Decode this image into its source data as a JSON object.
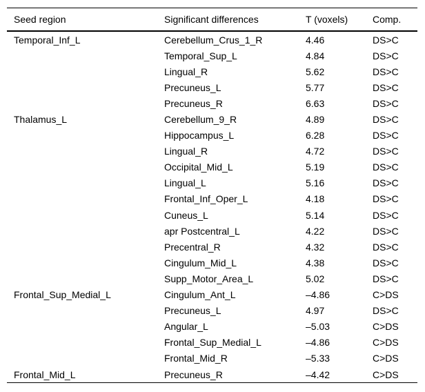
{
  "table": {
    "columns": [
      "Seed region",
      "Significant differences",
      "T (voxels)",
      "Comp."
    ],
    "rows": [
      {
        "seed": "Temporal_Inf_L",
        "difference": "Cerebellum_Crus_1_R",
        "t": "4.46",
        "comp": "DS>C"
      },
      {
        "seed": "",
        "difference": "Temporal_Sup_L",
        "t": "4.84",
        "comp": "DS>C"
      },
      {
        "seed": "",
        "difference": "Lingual_R",
        "t": "5.62",
        "comp": "DS>C"
      },
      {
        "seed": "",
        "difference": "Precuneus_L",
        "t": "5.77",
        "comp": "DS>C"
      },
      {
        "seed": "",
        "difference": "Precuneus_R",
        "t": "6.63",
        "comp": "DS>C"
      },
      {
        "seed": "Thalamus_L",
        "difference": "Cerebellum_9_R",
        "t": "4.89",
        "comp": "DS>C"
      },
      {
        "seed": "",
        "difference": "Hippocampus_L",
        "t": "6.28",
        "comp": "DS>C"
      },
      {
        "seed": "",
        "difference": "Lingual_R",
        "t": "4.72",
        "comp": "DS>C"
      },
      {
        "seed": "",
        "difference": "Occipital_Mid_L",
        "t": "5.19",
        "comp": "DS>C"
      },
      {
        "seed": "",
        "difference": "Lingual_L",
        "t": "5.16",
        "comp": "DS>C"
      },
      {
        "seed": "",
        "difference": "Frontal_Inf_Oper_L",
        "t": "4.18",
        "comp": "DS>C"
      },
      {
        "seed": "",
        "difference": "Cuneus_L",
        "t": "5.14",
        "comp": "DS>C"
      },
      {
        "seed": "",
        "difference": "apr Postcentral_L",
        "t": "4.22",
        "comp": "DS>C"
      },
      {
        "seed": "",
        "difference": "Precentral_R",
        "t": "4.32",
        "comp": "DS>C"
      },
      {
        "seed": "",
        "difference": "Cingulum_Mid_L",
        "t": "4.38",
        "comp": "DS>C"
      },
      {
        "seed": "",
        "difference": "Supp_Motor_Area_L",
        "t": "5.02",
        "comp": "DS>C"
      },
      {
        "seed": "Frontal_Sup_Medial_L",
        "difference": "Cingulum_Ant_L",
        "t": "–4.86",
        "comp": "C>DS"
      },
      {
        "seed": "",
        "difference": "Precuneus_L",
        "t": "4.97",
        "comp": "DS>C"
      },
      {
        "seed": "",
        "difference": "Angular_L",
        "t": "–5.03",
        "comp": "C>DS"
      },
      {
        "seed": "",
        "difference": "Frontal_Sup_Medial_L",
        "t": "–4.86",
        "comp": "C>DS"
      },
      {
        "seed": "",
        "difference": "Frontal_Mid_R",
        "t": "–5.33",
        "comp": "C>DS"
      },
      {
        "seed": "Frontal_Mid_L",
        "difference": "Precuneus_R",
        "t": "–4.42",
        "comp": "C>DS"
      }
    ]
  },
  "colors": {
    "background": "#ffffff",
    "text": "#000000",
    "rule": "#000000"
  }
}
